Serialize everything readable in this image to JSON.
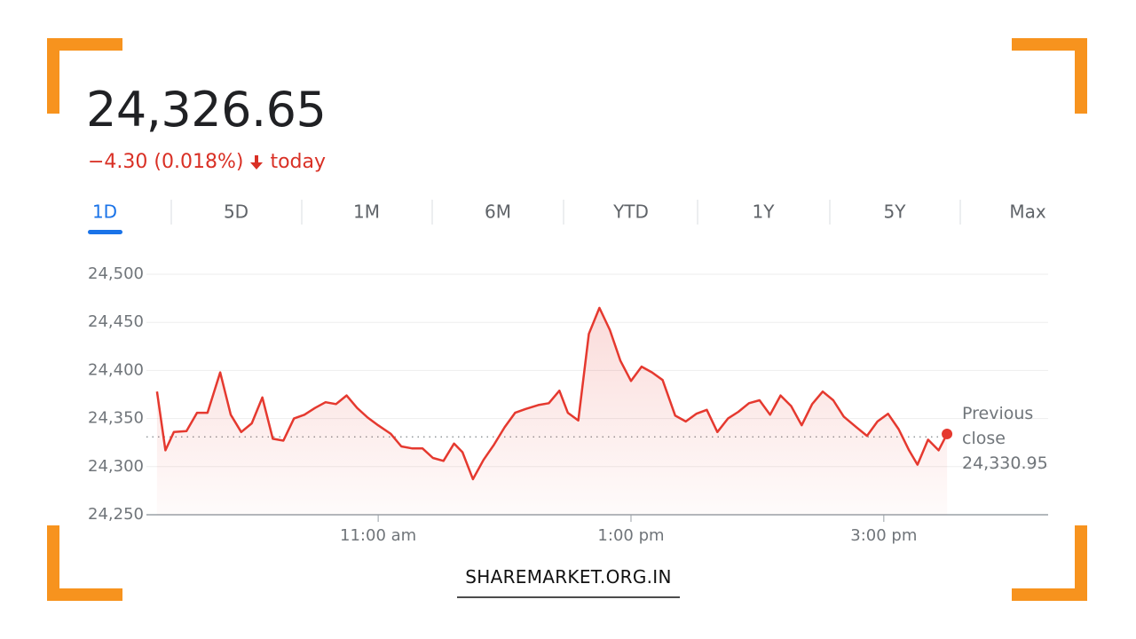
{
  "header": {
    "price": "24,326.65",
    "change": "−4.30 (0.018%)",
    "period": "today"
  },
  "tabs": {
    "items": [
      "1D",
      "5D",
      "1M",
      "6M",
      "YTD",
      "1Y",
      "5Y",
      "Max"
    ],
    "selected": 0
  },
  "chart_data": {
    "type": "line",
    "x": [
      555,
      559,
      563,
      569,
      574,
      579,
      585,
      590,
      595,
      600,
      605,
      610,
      615,
      620,
      625,
      630,
      635,
      640,
      645,
      650,
      655,
      660,
      666,
      671,
      676,
      681,
      686,
      691,
      696,
      700,
      705,
      710,
      715,
      720,
      725,
      730,
      736,
      741,
      746,
      750,
      755,
      760,
      765,
      770,
      775,
      780,
      785,
      790,
      795,
      801,
      806,
      811,
      816,
      821,
      826,
      831,
      836,
      841,
      846,
      851,
      856,
      861,
      866,
      871,
      876,
      881,
      887,
      892,
      897,
      902,
      907,
      912,
      916,
      921,
      926,
      930
    ],
    "xlim": [
      550,
      978
    ],
    "xticks": [
      {
        "value": 660,
        "label": "11:00 am"
      },
      {
        "value": 780,
        "label": "1:00 pm"
      },
      {
        "value": 900,
        "label": "3:00 pm"
      }
    ],
    "ylim": [
      24250,
      24500
    ],
    "yticks": [
      {
        "value": 24250,
        "label": "24,250"
      },
      {
        "value": 24300,
        "label": "24,300"
      },
      {
        "value": 24350,
        "label": "24,350"
      },
      {
        "value": 24400,
        "label": "24,400"
      },
      {
        "value": 24450,
        "label": "24,450"
      },
      {
        "value": 24500,
        "label": "24,500"
      }
    ],
    "grid": true,
    "series": [
      {
        "color": "#e5392f",
        "values": [
          24378,
          24317,
          24336,
          24337,
          24356,
          24356,
          24398,
          24354,
          24336,
          24345,
          24372,
          24329,
          24327,
          24350,
          24354,
          24361,
          24367,
          24365,
          24374,
          24361,
          24351,
          24343,
          24334,
          24321,
          24319,
          24319,
          24309,
          24306,
          24324,
          24315,
          24287,
          24307,
          24323,
          24341,
          24356,
          24360,
          24364,
          24366,
          24379,
          24356,
          24348,
          24438,
          24465,
          24442,
          24410,
          24389,
          24404,
          24398,
          24390,
          24353,
          24347,
          24355,
          24359,
          24336,
          24350,
          24357,
          24366,
          24369,
          24354,
          24374,
          24363,
          24343,
          24365,
          24378,
          24369,
          24352,
          24341,
          24332,
          24347,
          24355,
          24339,
          24317,
          24302,
          24328,
          24317,
          24334
        ]
      }
    ],
    "reference_line": {
      "name": "Previous close",
      "value": 24330.95,
      "label": "24,330.95"
    }
  },
  "footer": {
    "text": "SHAREMARKET.ORG.IN"
  }
}
